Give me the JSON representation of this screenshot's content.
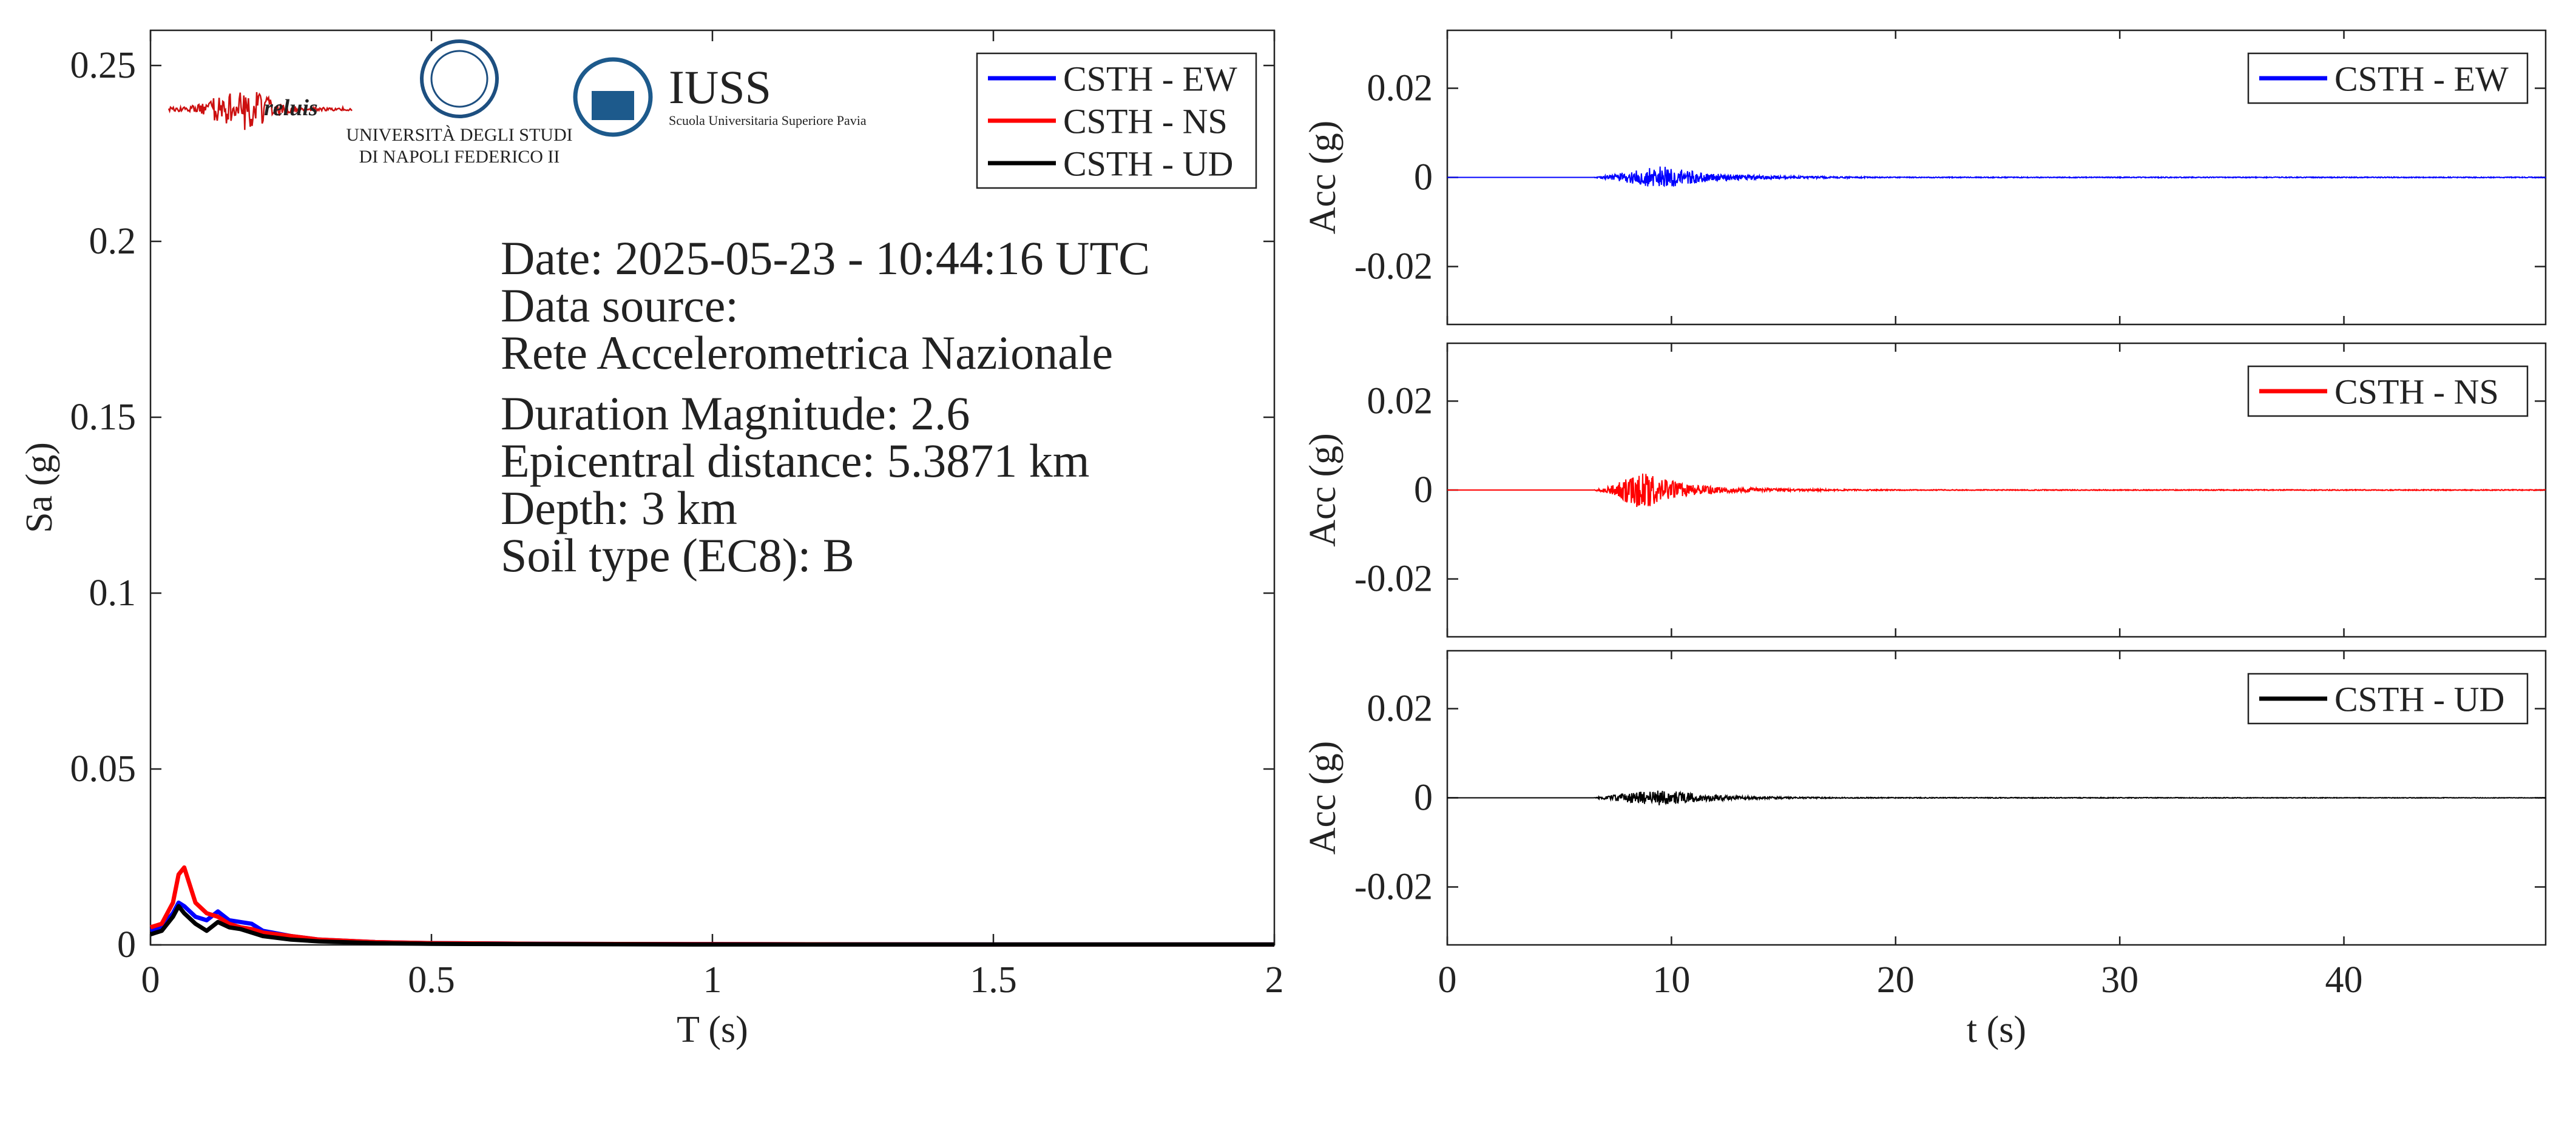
{
  "logos": {
    "reluis": "reluis",
    "unina_line1": "UNIVERSITÀ DEGLI STUDI",
    "unina_line2": "DI NAPOLI FEDERICO II",
    "iuss_title": "IUSS",
    "iuss_subtitle": "Scuola Universitaria Superiore Pavia"
  },
  "info": {
    "date": "Date: 2025-05-23 - 10:44:16 UTC",
    "source_label": "Data source:",
    "source": "Rete Accelerometrica Nazionale",
    "magnitude": "Duration Magnitude: 2.6",
    "distance": "Epicentral distance: 5.3871 km",
    "depth": "Depth: 3 km",
    "soil": "Soil type (EC8): B"
  },
  "colors": {
    "ew": "#0000ff",
    "ns": "#ff0000",
    "ud": "#000000",
    "reluis": "#cc1010",
    "iuss": "#1d5a8c"
  },
  "chart_data": [
    {
      "type": "line",
      "id": "spectrum",
      "xlabel": "T (s)",
      "ylabel": "Sa (g)",
      "xlim": [
        0,
        2
      ],
      "ylim": [
        0,
        0.26
      ],
      "xticks": [
        0,
        0.5,
        1,
        1.5,
        2
      ],
      "xticklabels": [
        "0",
        "0.5",
        "1",
        "1.5",
        "2"
      ],
      "yticks": [
        0,
        0.05,
        0.1,
        0.15,
        0.2,
        0.25
      ],
      "yticklabels": [
        "0",
        "0.05",
        "0.1",
        "0.15",
        "0.2",
        "0.25"
      ],
      "legend": "top-right",
      "grid": false,
      "x": [
        0,
        0.02,
        0.04,
        0.05,
        0.06,
        0.08,
        0.1,
        0.12,
        0.14,
        0.16,
        0.18,
        0.2,
        0.25,
        0.3,
        0.4,
        0.5,
        0.7,
        1.0,
        1.5,
        2.0
      ],
      "series": [
        {
          "name": "CSTH - EW",
          "color_key": "ew",
          "values": [
            0.004,
            0.005,
            0.009,
            0.012,
            0.011,
            0.008,
            0.007,
            0.0095,
            0.007,
            0.0065,
            0.006,
            0.004,
            0.0025,
            0.0015,
            0.0008,
            0.0005,
            0.0003,
            0.0002,
            0.0001,
            0.0001
          ]
        },
        {
          "name": "CSTH - NS",
          "color_key": "ns",
          "values": [
            0.005,
            0.006,
            0.012,
            0.02,
            0.022,
            0.012,
            0.009,
            0.008,
            0.006,
            0.005,
            0.0045,
            0.0035,
            0.0025,
            0.0015,
            0.0008,
            0.0005,
            0.0003,
            0.0002,
            0.0001,
            0.0001
          ]
        },
        {
          "name": "CSTH - UD",
          "color_key": "ud",
          "values": [
            0.003,
            0.004,
            0.008,
            0.011,
            0.009,
            0.006,
            0.004,
            0.0065,
            0.005,
            0.0045,
            0.0035,
            0.0025,
            0.0015,
            0.001,
            0.0005,
            0.0003,
            0.0002,
            0.0001,
            0.0001,
            0.0001
          ]
        }
      ]
    },
    {
      "type": "line",
      "id": "acc-ew",
      "series": [
        {
          "name": "CSTH - EW",
          "color_key": "ew"
        }
      ],
      "ylabel": "Acc (g)",
      "xlim": [
        0,
        49
      ],
      "ylim": [
        -0.033,
        0.033
      ],
      "yticks": [
        0.02,
        0,
        -0.02
      ],
      "yticklabels": [
        "0.02",
        "0",
        "-0.02"
      ],
      "legend": "top-right",
      "envelope": {
        "x": [
          6.5,
          7.5,
          8.5,
          9.5,
          10.5,
          11.5,
          13,
          15,
          17,
          20,
          49
        ],
        "amp": [
          0.0,
          0.0008,
          0.0016,
          0.0026,
          0.0018,
          0.001,
          0.0006,
          0.0003,
          0.0002,
          0.0001,
          0.0001
        ]
      }
    },
    {
      "type": "line",
      "id": "acc-ns",
      "series": [
        {
          "name": "CSTH - NS",
          "color_key": "ns"
        }
      ],
      "ylabel": "Acc (g)",
      "xlim": [
        0,
        49
      ],
      "ylim": [
        -0.033,
        0.033
      ],
      "yticks": [
        0.02,
        0,
        -0.02
      ],
      "yticklabels": [
        "0.02",
        "0",
        "-0.02"
      ],
      "legend": "top-right",
      "envelope": {
        "x": [
          6.5,
          7.5,
          8.2,
          8.8,
          9.5,
          10.5,
          11.5,
          13,
          15,
          17,
          20,
          49
        ],
        "amp": [
          0.0,
          0.0012,
          0.0035,
          0.0042,
          0.0028,
          0.0015,
          0.0009,
          0.0005,
          0.0003,
          0.0002,
          0.0001,
          0.0001
        ]
      }
    },
    {
      "type": "line",
      "id": "acc-ud",
      "series": [
        {
          "name": "CSTH - UD",
          "color_key": "ud"
        }
      ],
      "ylabel": "Acc (g)",
      "xlabel": "t (s)",
      "xlim": [
        0,
        49
      ],
      "ylim": [
        -0.033,
        0.033
      ],
      "xticks": [
        0,
        10,
        20,
        30,
        40
      ],
      "xticklabels": [
        "0",
        "10",
        "20",
        "30",
        "40"
      ],
      "yticks": [
        0.02,
        0,
        -0.02
      ],
      "yticklabels": [
        "0.02",
        "0",
        "-0.02"
      ],
      "legend": "top-right",
      "envelope": {
        "x": [
          6.5,
          7.5,
          8.5,
          9.5,
          10.5,
          11.5,
          13,
          15,
          18,
          49
        ],
        "amp": [
          0.0,
          0.0007,
          0.0013,
          0.0017,
          0.0013,
          0.0008,
          0.0004,
          0.0002,
          0.0001,
          5e-05
        ]
      }
    }
  ]
}
